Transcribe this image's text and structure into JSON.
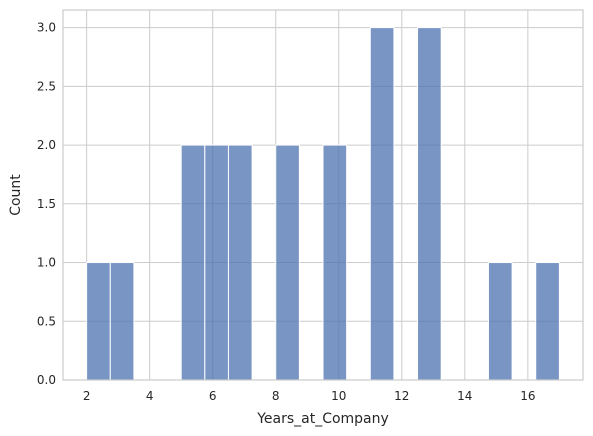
{
  "chart_data": {
    "type": "bar",
    "subtype": "histogram",
    "title": "",
    "xlabel": "Years_at_Company",
    "ylabel": "Count",
    "xlim": [
      1.25,
      17.75
    ],
    "ylim": [
      0,
      3.15
    ],
    "xticks": [
      2,
      4,
      6,
      8,
      10,
      12,
      14,
      16
    ],
    "yticks": [
      0.0,
      0.5,
      1.0,
      1.5,
      2.0,
      2.5,
      3.0
    ],
    "ytick_labels": [
      "0.0",
      "0.5",
      "1.0",
      "1.5",
      "2.0",
      "2.5",
      "3.0"
    ],
    "grid": true,
    "bar_color": "#4c72b0",
    "bins": [
      {
        "x0": 2.0,
        "x1": 2.75,
        "count": 1
      },
      {
        "x0": 2.75,
        "x1": 3.5,
        "count": 1
      },
      {
        "x0": 3.5,
        "x1": 4.25,
        "count": 0
      },
      {
        "x0": 4.25,
        "x1": 5.0,
        "count": 0
      },
      {
        "x0": 5.0,
        "x1": 5.75,
        "count": 2
      },
      {
        "x0": 5.75,
        "x1": 6.5,
        "count": 2
      },
      {
        "x0": 6.5,
        "x1": 7.25,
        "count": 2
      },
      {
        "x0": 7.25,
        "x1": 8.0,
        "count": 0
      },
      {
        "x0": 8.0,
        "x1": 8.75,
        "count": 2
      },
      {
        "x0": 8.75,
        "x1": 9.5,
        "count": 0
      },
      {
        "x0": 9.5,
        "x1": 10.25,
        "count": 2
      },
      {
        "x0": 10.25,
        "x1": 11.0,
        "count": 0
      },
      {
        "x0": 11.0,
        "x1": 11.75,
        "count": 3
      },
      {
        "x0": 11.75,
        "x1": 12.5,
        "count": 0
      },
      {
        "x0": 12.5,
        "x1": 13.25,
        "count": 3
      },
      {
        "x0": 13.25,
        "x1": 14.0,
        "count": 0
      },
      {
        "x0": 14.0,
        "x1": 14.75,
        "count": 0
      },
      {
        "x0": 14.75,
        "x1": 15.5,
        "count": 1
      },
      {
        "x0": 15.5,
        "x1": 16.25,
        "count": 0
      },
      {
        "x0": 16.25,
        "x1": 17.0,
        "count": 1
      }
    ]
  }
}
